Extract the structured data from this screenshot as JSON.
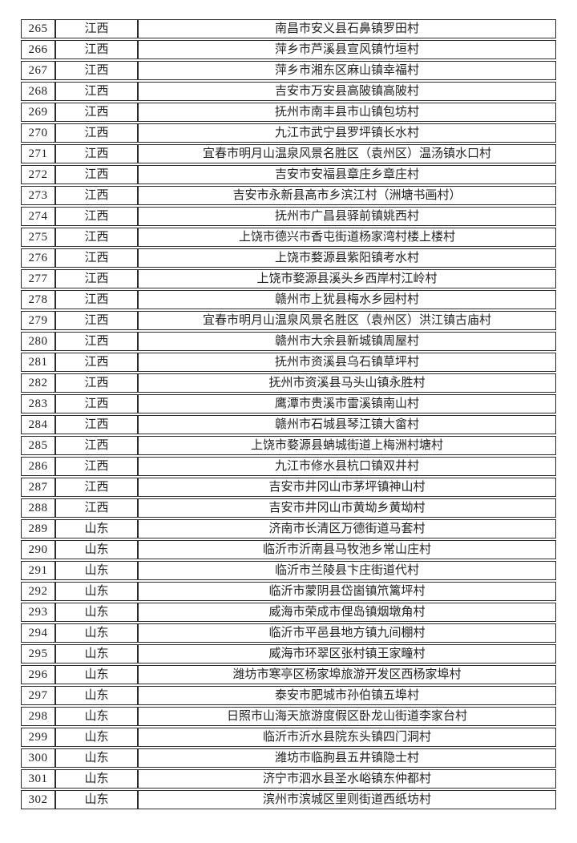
{
  "colors": {
    "border": "#2b2b2b",
    "text": "#222222",
    "page_background": "#ffffff"
  },
  "table": {
    "columns": [
      "no",
      "province",
      "village"
    ],
    "rows": [
      {
        "no": "265",
        "province": "江西",
        "village": "南昌市安义县石鼻镇罗田村"
      },
      {
        "no": "266",
        "province": "江西",
        "village": "萍乡市芦溪县宣风镇竹垣村"
      },
      {
        "no": "267",
        "province": "江西",
        "village": "萍乡市湘东区麻山镇幸福村"
      },
      {
        "no": "268",
        "province": "江西",
        "village": "吉安市万安县高陂镇高陂村"
      },
      {
        "no": "269",
        "province": "江西",
        "village": "抚州市南丰县市山镇包坊村"
      },
      {
        "no": "270",
        "province": "江西",
        "village": "九江市武宁县罗坪镇长水村"
      },
      {
        "no": "271",
        "province": "江西",
        "village": "宜春市明月山温泉风景名胜区（袁州区）温汤镇水口村"
      },
      {
        "no": "272",
        "province": "江西",
        "village": "吉安市安福县章庄乡章庄村"
      },
      {
        "no": "273",
        "province": "江西",
        "village": "吉安市永新县高市乡滨江村（洲塘书画村）"
      },
      {
        "no": "274",
        "province": "江西",
        "village": "抚州市广昌县驿前镇姚西村"
      },
      {
        "no": "275",
        "province": "江西",
        "village": "上饶市德兴市香屯街道杨家湾村楼上楼村"
      },
      {
        "no": "276",
        "province": "江西",
        "village": "上饶市婺源县紫阳镇考水村"
      },
      {
        "no": "277",
        "province": "江西",
        "village": "上饶市婺源县溪头乡西岸村江岭村"
      },
      {
        "no": "278",
        "province": "江西",
        "village": "赣州市上犹县梅水乡园村村"
      },
      {
        "no": "279",
        "province": "江西",
        "village": "宜春市明月山温泉风景名胜区（袁州区）洪江镇古庙村"
      },
      {
        "no": "280",
        "province": "江西",
        "village": "赣州市大余县新城镇周屋村"
      },
      {
        "no": "281",
        "province": "江西",
        "village": "抚州市资溪县乌石镇草坪村"
      },
      {
        "no": "282",
        "province": "江西",
        "village": "抚州市资溪县马头山镇永胜村"
      },
      {
        "no": "283",
        "province": "江西",
        "village": "鹰潭市贵溪市雷溪镇南山村"
      },
      {
        "no": "284",
        "province": "江西",
        "village": "赣州市石城县琴江镇大畲村"
      },
      {
        "no": "285",
        "province": "江西",
        "village": "上饶市婺源县蚺城街道上梅洲村塘村"
      },
      {
        "no": "286",
        "province": "江西",
        "village": "九江市修水县杭口镇双井村"
      },
      {
        "no": "287",
        "province": "江西",
        "village": "吉安市井冈山市茅坪镇神山村"
      },
      {
        "no": "288",
        "province": "江西",
        "village": "吉安市井冈山市黄坳乡黄坳村"
      },
      {
        "no": "289",
        "province": "山东",
        "village": "济南市长清区万德街道马套村"
      },
      {
        "no": "290",
        "province": "山东",
        "village": "临沂市沂南县马牧池乡常山庄村"
      },
      {
        "no": "291",
        "province": "山东",
        "village": "临沂市兰陵县卞庄街道代村"
      },
      {
        "no": "292",
        "province": "山东",
        "village": "临沂市蒙阴县岱崮镇笊篱坪村"
      },
      {
        "no": "293",
        "province": "山东",
        "village": "威海市荣成市俚岛镇烟墩角村"
      },
      {
        "no": "294",
        "province": "山东",
        "village": "临沂市平邑县地方镇九间棚村"
      },
      {
        "no": "295",
        "province": "山东",
        "village": "威海市环翠区张村镇王家疃村"
      },
      {
        "no": "296",
        "province": "山东",
        "village": "潍坊市寒亭区杨家埠旅游开发区西杨家埠村"
      },
      {
        "no": "297",
        "province": "山东",
        "village": "泰安市肥城市孙伯镇五埠村"
      },
      {
        "no": "298",
        "province": "山东",
        "village": "日照市山海天旅游度假区卧龙山街道李家台村"
      },
      {
        "no": "299",
        "province": "山东",
        "village": "临沂市沂水县院东头镇四门洞村"
      },
      {
        "no": "300",
        "province": "山东",
        "village": "潍坊市临朐县五井镇隐士村"
      },
      {
        "no": "301",
        "province": "山东",
        "village": "济宁市泗水县圣水峪镇东仲都村"
      },
      {
        "no": "302",
        "province": "山东",
        "village": "滨州市滨城区里则街道西纸坊村"
      }
    ]
  }
}
